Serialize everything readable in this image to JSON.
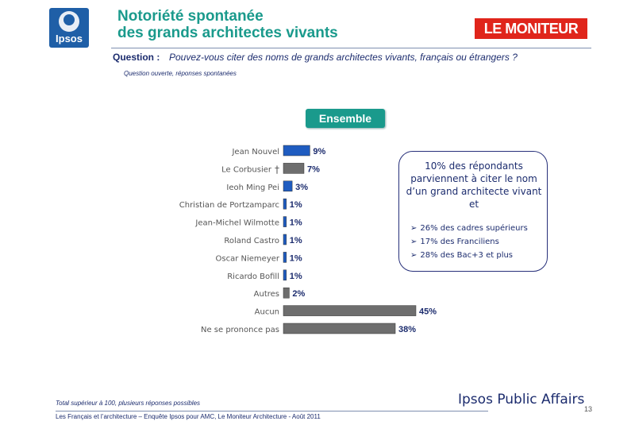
{
  "header": {
    "logo_text": "Ipsos",
    "title_line1": "Notoriété spontanée",
    "title_line2": "des grands architectes vivants",
    "partner_logo": "LE MONITEUR"
  },
  "question": {
    "label": "Question :",
    "text": "Pouvez-vous citer des noms de grands architectes vivants, français ou étrangers ?",
    "note": "Question ouverte, réponses spontanées"
  },
  "segment_label": "Ensemble",
  "chart_data": {
    "type": "bar",
    "orientation": "horizontal",
    "title": "Ensemble",
    "categories": [
      "Jean Nouvel",
      "Le Corbusier",
      "Ieoh Ming Pei",
      "Christian de Portzamparc",
      "Jean-Michel Wilmotte",
      "Roland Castro",
      "Oscar Niemeyer",
      "Ricardo Bofill",
      "Autres",
      "Aucun",
      "Ne se prononce pas"
    ],
    "values": [
      9,
      7,
      3,
      1,
      1,
      1,
      1,
      1,
      2,
      45,
      38
    ],
    "labels": [
      "9%",
      "7%",
      "3%",
      "1%",
      "1%",
      "1%",
      "1%",
      "1%",
      "2%",
      "45%",
      "38%"
    ],
    "bar_colors": [
      "#1f5cc0",
      "#6e6e6e",
      "#1f5cc0",
      "#1f5cc0",
      "#1f5cc0",
      "#1f5cc0",
      "#1f5cc0",
      "#1f5cc0",
      "#6e6e6e",
      "#6e6e6e",
      "#6e6e6e"
    ],
    "dagger_marker": "†",
    "dagger_category": "Le Corbusier",
    "xlim": [
      0,
      45
    ],
    "xlabel": "",
    "ylabel": ""
  },
  "callout": {
    "main": "10% des répondants parviennent à citer le nom d’un grand architecte vivant et",
    "bullets": [
      "26% des cadres supérieurs",
      "17% des Franciliens",
      "28% des Bac+3 et plus"
    ],
    "bullet_icon": "➢"
  },
  "footer": {
    "note": "Total supérieur à 100, plusieurs réponses possibles",
    "brand": "Ipsos Public Affairs",
    "page": "13",
    "source": "Les Français et l’architecture – Enquête Ipsos pour AMC, Le Moniteur Architecture - Août 2011"
  },
  "colors": {
    "title": "#1a9a8c",
    "navy": "#1c2c6e",
    "bar_blue": "#1f5cc0",
    "bar_grey": "#6e6e6e",
    "moniteur_red": "#e0251b"
  }
}
